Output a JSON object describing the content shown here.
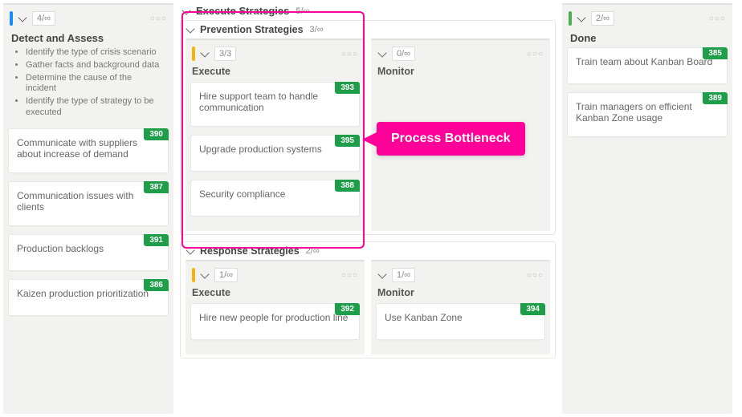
{
  "colors": {
    "accent_blue": "#1a8cff",
    "accent_yellow": "#f5b50a",
    "accent_green": "#4caf50",
    "badge_green": "#1f9e4a",
    "callout_pink": "#ff0099"
  },
  "left": {
    "counter": "4/∞",
    "title": "Detect and Assess",
    "bullets": [
      "Identify the type of crisis scenario",
      "Gather facts and background data",
      "Determine the cause of the incident",
      "Identify the type of strategy to be executed"
    ],
    "cards": [
      {
        "text": "Communicate with suppliers about increase of demand",
        "badge": "390"
      },
      {
        "text": "Communication issues with clients",
        "badge": "387"
      },
      {
        "text": "Production backlogs",
        "badge": "391"
      },
      {
        "text": "Kaizen production prioritization",
        "badge": "386"
      }
    ]
  },
  "mid": {
    "title": "Execute Strategies",
    "counter": "5/∞",
    "groups": [
      {
        "title": "Prevention Strategies",
        "counter": "3/∞",
        "execute": {
          "counter": "3/3",
          "title": "Execute",
          "cards": [
            {
              "text": "Hire support team to handle communication",
              "badge": "393"
            },
            {
              "text": "Upgrade production systems",
              "badge": "395"
            },
            {
              "text": "Security compliance",
              "badge": "388"
            }
          ]
        },
        "monitor": {
          "counter": "0/∞",
          "title": "Monitor",
          "cards": []
        },
        "callout": "Process Bottleneck"
      },
      {
        "title": "Response Strategies",
        "counter": "2/∞",
        "execute": {
          "counter": "1/∞",
          "title": "Execute",
          "cards": [
            {
              "text": "Hire new people for production line",
              "badge": "392"
            }
          ]
        },
        "monitor": {
          "counter": "1/∞",
          "title": "Monitor",
          "cards": [
            {
              "text": "Use Kanban Zone",
              "badge": "394"
            }
          ]
        }
      }
    ]
  },
  "right": {
    "counter": "2/∞",
    "title": "Done",
    "cards": [
      {
        "text": "Train team about Kanban Board",
        "badge": "385"
      },
      {
        "text": "Train managers on efficient Kanban Zone usage",
        "badge": "389"
      }
    ]
  }
}
